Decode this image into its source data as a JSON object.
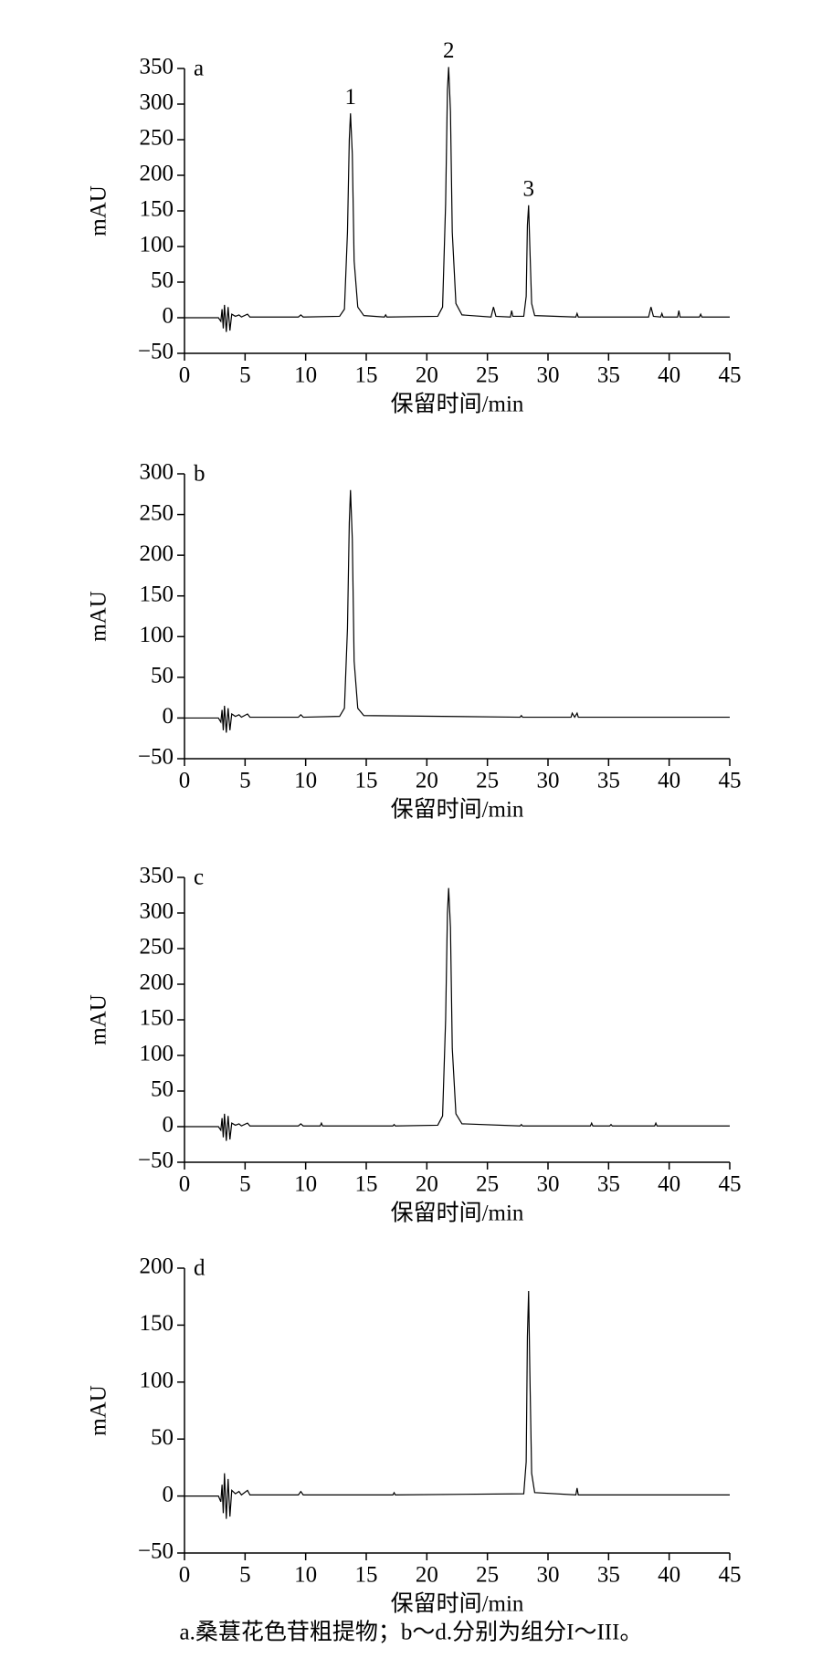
{
  "chart_data": [
    {
      "type": "line",
      "label": "a",
      "xlabel": "保留时间/min",
      "ylabel": "mAU",
      "x": [
        0,
        2.8,
        3.0,
        3.1,
        3.2,
        3.3,
        3.45,
        3.6,
        3.75,
        3.9,
        4.2,
        4.5,
        4.7,
        5.2,
        5.4,
        9.4,
        9.6,
        9.8,
        12.8,
        13.2,
        13.45,
        13.6,
        13.7,
        13.85,
        14.0,
        14.3,
        14.8,
        16.5,
        16.6,
        16.7,
        20.9,
        21.3,
        21.55,
        21.7,
        21.8,
        21.95,
        22.1,
        22.4,
        22.9,
        25.3,
        25.5,
        25.7,
        26.9,
        27.0,
        27.1,
        28.0,
        28.2,
        28.3,
        28.4,
        28.5,
        28.65,
        28.9,
        32.3,
        32.4,
        32.5,
        38.3,
        38.5,
        38.7,
        39.3,
        39.4,
        39.5,
        40.7,
        40.8,
        40.9,
        42.5,
        42.6,
        42.7,
        45
      ],
      "series": [
        {
          "color": "#000000",
          "values": [
            0,
            0,
            -5,
            12,
            -15,
            18,
            -20,
            15,
            -18,
            5,
            2,
            4,
            1,
            5,
            1,
            1,
            4,
            1,
            2,
            12,
            120,
            250,
            287,
            230,
            80,
            15,
            3,
            1,
            4,
            1,
            2,
            15,
            160,
            320,
            352,
            290,
            120,
            20,
            4,
            1,
            15,
            2,
            1,
            10,
            2,
            2,
            30,
            130,
            158,
            100,
            20,
            3,
            1,
            6,
            1,
            1,
            15,
            2,
            1,
            6,
            1,
            1,
            10,
            1,
            1,
            5,
            1,
            1
          ]
        }
      ],
      "xlim": [
        0,
        45
      ],
      "xticks": [
        0,
        5,
        10,
        15,
        20,
        25,
        30,
        35,
        40,
        45
      ],
      "ylim": [
        -50,
        350
      ],
      "yticks": [
        {
          "value": -50,
          "label": "−50"
        },
        0,
        50,
        100,
        150,
        200,
        250,
        300,
        350
      ],
      "annotations": [
        {
          "text": "1",
          "x": 13.7,
          "y": 287
        },
        {
          "text": "2",
          "x": 21.8,
          "y": 352
        },
        {
          "text": "3",
          "x": 28.4,
          "y": 158
        }
      ]
    },
    {
      "type": "line",
      "label": "b",
      "xlabel": "保留时间/min",
      "ylabel": "mAU",
      "x": [
        0,
        2.8,
        3.0,
        3.1,
        3.2,
        3.3,
        3.45,
        3.6,
        3.75,
        3.9,
        4.2,
        4.5,
        4.7,
        5.2,
        5.4,
        9.4,
        9.6,
        9.8,
        12.8,
        13.2,
        13.45,
        13.6,
        13.7,
        13.85,
        14.0,
        14.3,
        14.8,
        27.7,
        27.8,
        27.9,
        31.9,
        32.0,
        32.2,
        32.4,
        32.5,
        45
      ],
      "series": [
        {
          "color": "#000000",
          "values": [
            0,
            0,
            -5,
            10,
            -15,
            15,
            -18,
            12,
            -15,
            5,
            2,
            4,
            1,
            5,
            1,
            1,
            4,
            1,
            2,
            12,
            110,
            240,
            280,
            220,
            70,
            12,
            3,
            1,
            3,
            1,
            1,
            6,
            1,
            6,
            1,
            1
          ]
        }
      ],
      "xlim": [
        0,
        45
      ],
      "xticks": [
        0,
        5,
        10,
        15,
        20,
        25,
        30,
        35,
        40,
        45
      ],
      "ylim": [
        -50,
        300
      ],
      "yticks": [
        {
          "value": -50,
          "label": "−50"
        },
        0,
        50,
        100,
        150,
        200,
        250,
        300
      ]
    },
    {
      "type": "line",
      "label": "c",
      "xlabel": "保留时间/min",
      "ylabel": "mAU",
      "x": [
        0,
        2.8,
        3.0,
        3.1,
        3.2,
        3.3,
        3.45,
        3.6,
        3.75,
        3.9,
        4.2,
        4.5,
        4.7,
        5.2,
        5.4,
        9.4,
        9.6,
        9.8,
        11.2,
        11.3,
        11.4,
        17.2,
        17.3,
        17.4,
        20.9,
        21.3,
        21.55,
        21.7,
        21.8,
        21.95,
        22.1,
        22.4,
        22.9,
        27.7,
        27.8,
        27.9,
        33.5,
        33.6,
        33.7,
        35.1,
        35.2,
        35.3,
        38.8,
        38.9,
        39.0,
        45
      ],
      "series": [
        {
          "color": "#000000",
          "values": [
            0,
            0,
            -5,
            12,
            -15,
            18,
            -20,
            15,
            -18,
            5,
            2,
            4,
            1,
            5,
            1,
            1,
            4,
            1,
            1,
            5,
            1,
            1,
            3,
            1,
            2,
            15,
            150,
            300,
            335,
            280,
            110,
            18,
            4,
            1,
            3,
            1,
            1,
            5,
            1,
            1,
            3,
            1,
            1,
            5,
            1,
            1
          ]
        }
      ],
      "xlim": [
        0,
        45
      ],
      "xticks": [
        0,
        5,
        10,
        15,
        20,
        25,
        30,
        35,
        40,
        45
      ],
      "ylim": [
        -50,
        350
      ],
      "yticks": [
        {
          "value": -50,
          "label": "−50"
        },
        0,
        50,
        100,
        150,
        200,
        250,
        300,
        350
      ]
    },
    {
      "type": "line",
      "label": "d",
      "xlabel": "保留时间/min",
      "ylabel": "mAU",
      "x": [
        0,
        2.8,
        3.0,
        3.1,
        3.2,
        3.3,
        3.45,
        3.6,
        3.75,
        3.9,
        4.2,
        4.5,
        4.7,
        5.2,
        5.4,
        9.4,
        9.6,
        9.8,
        17.2,
        17.3,
        17.4,
        28.0,
        28.2,
        28.3,
        28.4,
        28.5,
        28.65,
        28.9,
        32.3,
        32.4,
        32.5,
        45
      ],
      "series": [
        {
          "color": "#000000",
          "values": [
            0,
            0,
            -5,
            10,
            -15,
            20,
            -20,
            15,
            -18,
            5,
            2,
            4,
            1,
            5,
            1,
            1,
            4,
            1,
            1,
            3,
            1,
            2,
            30,
            140,
            180,
            110,
            20,
            3,
            1,
            7,
            1,
            1
          ]
        }
      ],
      "xlim": [
        0,
        45
      ],
      "xticks": [
        0,
        5,
        10,
        15,
        20,
        25,
        30,
        35,
        40,
        45
      ],
      "ylim": [
        -50,
        200
      ],
      "yticks": [
        {
          "value": -50,
          "label": "−50"
        },
        0,
        50,
        100,
        150,
        200
      ]
    }
  ],
  "caption": "a.桑葚花色苷粗提物；b～d.分别为组分I～III。"
}
